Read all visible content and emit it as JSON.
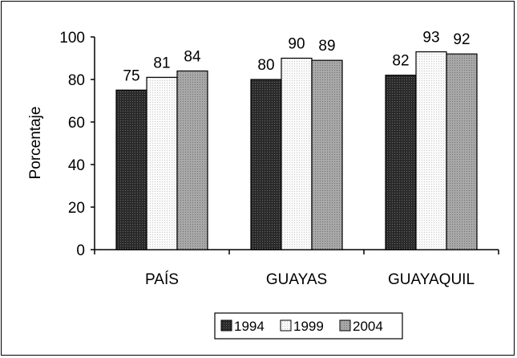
{
  "chart_data": {
    "type": "bar",
    "title": "",
    "xlabel": "",
    "ylabel": "Porcentaje",
    "ylim": [
      0,
      100
    ],
    "yticks": [
      0,
      20,
      40,
      60,
      80,
      100
    ],
    "categories": [
      "PAÍS",
      "GUAYAS",
      "GUAYAQUIL"
    ],
    "series": [
      {
        "name": "1994",
        "values": [
          75,
          80,
          82
        ],
        "color": "#3a3a3a",
        "pattern": "dark-dots"
      },
      {
        "name": "1999",
        "values": [
          81,
          90,
          93
        ],
        "color": "#f2f2f2",
        "pattern": "light-dots"
      },
      {
        "name": "2004",
        "values": [
          84,
          89,
          92
        ],
        "color": "#9a9a9a",
        "pattern": "medium-dots"
      }
    ],
    "grid": false,
    "legend": "bottom",
    "data_labels": true
  }
}
